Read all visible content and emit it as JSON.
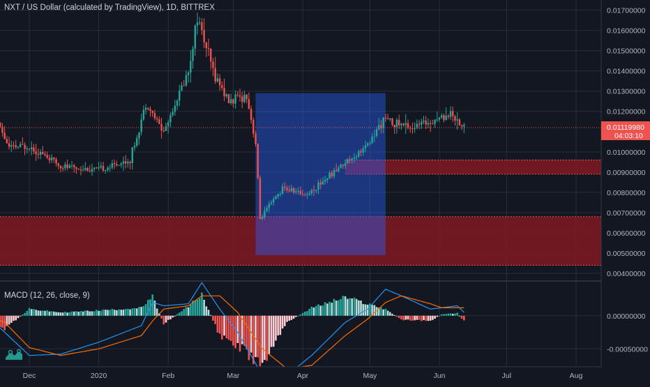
{
  "header": {
    "symbol_title": "NXT / US Dollar (calculated by TradingView), 1D, BITTREX"
  },
  "macd": {
    "title": "MACD (12, 26, close, 9)",
    "tick_labels": [
      "0.00000000",
      "-0.00050000"
    ]
  },
  "price_axis": {
    "last_price": "0.01119980",
    "countdown": "04:03:10",
    "tick_labels": [
      "0.01700000",
      "0.01600000",
      "0.01500000",
      "0.01400000",
      "0.01300000",
      "0.01200000",
      "0.01000000",
      "0.00900000",
      "0.00800000",
      "0.00700000",
      "0.00600000",
      "0.00500000",
      "0.00400000"
    ]
  },
  "time_axis": {
    "labels": [
      "Dec",
      "2020",
      "Feb",
      "Mar",
      "Apr",
      "May",
      "Jun",
      "Jul",
      "Aug"
    ]
  },
  "colors": {
    "background": "#131722",
    "up": "#26a69a",
    "down": "#ef5350",
    "zone": "#801922",
    "box": "#2962ff",
    "macd_line": "#2196f3",
    "signal_line": "#ff6d00",
    "last_price_bg": "#ef5350"
  },
  "chart_data": {
    "type": "candlestick",
    "title": "NXT / US Dollar (calculated by TradingView), 1D, BITTREX",
    "ylim": [
      0.0039,
      0.0175
    ],
    "last_price": 0.0111998,
    "waypoints": [
      {
        "date": "2019-11-13",
        "close": 0.0124
      },
      {
        "date": "2019-11-22",
        "close": 0.0102
      },
      {
        "date": "2019-12-01",
        "close": 0.0103
      },
      {
        "date": "2019-12-15",
        "close": 0.0093
      },
      {
        "date": "2020-01-01",
        "close": 0.0091
      },
      {
        "date": "2020-01-15",
        "close": 0.0096
      },
      {
        "date": "2020-01-22",
        "close": 0.0124
      },
      {
        "date": "2020-01-30",
        "close": 0.011
      },
      {
        "date": "2020-02-10",
        "close": 0.014
      },
      {
        "date": "2020-02-14",
        "close": 0.0167
      },
      {
        "date": "2020-02-21",
        "close": 0.014
      },
      {
        "date": "2020-02-28",
        "close": 0.0125
      },
      {
        "date": "2020-03-07",
        "close": 0.0128
      },
      {
        "date": "2020-03-11",
        "close": 0.0104
      },
      {
        "date": "2020-03-13",
        "close": 0.0067
      },
      {
        "date": "2020-03-23",
        "close": 0.0082
      },
      {
        "date": "2020-04-03",
        "close": 0.0079
      },
      {
        "date": "2020-04-20",
        "close": 0.0095
      },
      {
        "date": "2020-04-30",
        "close": 0.0103
      },
      {
        "date": "2020-05-07",
        "close": 0.0116
      },
      {
        "date": "2020-05-20",
        "close": 0.0112
      },
      {
        "date": "2020-06-06",
        "close": 0.0119
      },
      {
        "date": "2020-06-12",
        "close": 0.0112
      }
    ],
    "resistance_zones": [
      {
        "from": 0.0089,
        "to": 0.0096
      },
      {
        "from": 0.0044,
        "to": 0.0068
      }
    ],
    "range_box": {
      "start": "2020-03-11",
      "end": "2020-05-08",
      "top": 0.0129,
      "bottom": 0.0049
    },
    "macd": {
      "ylim": [
        -0.00075,
        0.00045
      ],
      "waypoints": [
        {
          "date": "2019-11-13",
          "hist": -8e-05,
          "macd": -2e-05,
          "signal": 0.0
        },
        {
          "date": "2019-11-20",
          "hist": -0.0002,
          "macd": -0.00025,
          "signal": -0.0001
        },
        {
          "date": "2019-12-01",
          "hist": 0.0001,
          "macd": -0.0006,
          "signal": -0.00048
        },
        {
          "date": "2019-12-15",
          "hist": 5e-05,
          "macd": -0.00058,
          "signal": -0.0006
        },
        {
          "date": "2020-01-01",
          "hist": 8e-05,
          "macd": -0.0004,
          "signal": -0.0005
        },
        {
          "date": "2020-01-20",
          "hist": 0.00012,
          "macd": -0.00015,
          "signal": -0.0003
        },
        {
          "date": "2020-01-25",
          "hist": 0.00028,
          "macd": 0.0002,
          "signal": -8e-05
        },
        {
          "date": "2020-01-30",
          "hist": -0.00012,
          "macd": 0.00015,
          "signal": 0.0001
        },
        {
          "date": "2020-02-10",
          "hist": 0.00014,
          "macd": 0.00018,
          "signal": 0.00015
        },
        {
          "date": "2020-02-16",
          "hist": 0.00032,
          "macd": 0.0005,
          "signal": 0.0003
        },
        {
          "date": "2020-02-24",
          "hist": -0.0003,
          "macd": 0.0001,
          "signal": 0.0003
        },
        {
          "date": "2020-03-03",
          "hist": -0.00045,
          "macd": -0.00025,
          "signal": 5e-05
        },
        {
          "date": "2020-03-14",
          "hist": -0.00075,
          "macd": -0.0009,
          "signal": -0.0005
        },
        {
          "date": "2020-03-25",
          "hist": -0.0001,
          "macd": -0.0009,
          "signal": -0.0008
        },
        {
          "date": "2020-04-05",
          "hist": 0.00012,
          "macd": -0.0006,
          "signal": -0.00075
        },
        {
          "date": "2020-04-20",
          "hist": 0.00028,
          "macd": -0.0001,
          "signal": -0.0003
        },
        {
          "date": "2020-04-30",
          "hist": 0.00018,
          "macd": 0.0001,
          "signal": -5e-05
        },
        {
          "date": "2020-05-08",
          "hist": 0.0001,
          "macd": 0.0004,
          "signal": 0.0002
        },
        {
          "date": "2020-05-15",
          "hist": -6e-05,
          "macd": 0.0003,
          "signal": 0.0003
        },
        {
          "date": "2020-05-28",
          "hist": -8e-05,
          "macd": 0.0001,
          "signal": 0.00018
        },
        {
          "date": "2020-06-02",
          "hist": 2e-05,
          "macd": 0.00012,
          "signal": 0.00012
        },
        {
          "date": "2020-06-09",
          "hist": 4e-05,
          "macd": 0.00015,
          "signal": 0.00012
        },
        {
          "date": "2020-06-12",
          "hist": -8e-05,
          "macd": 5e-05,
          "signal": 0.00012
        }
      ]
    }
  }
}
